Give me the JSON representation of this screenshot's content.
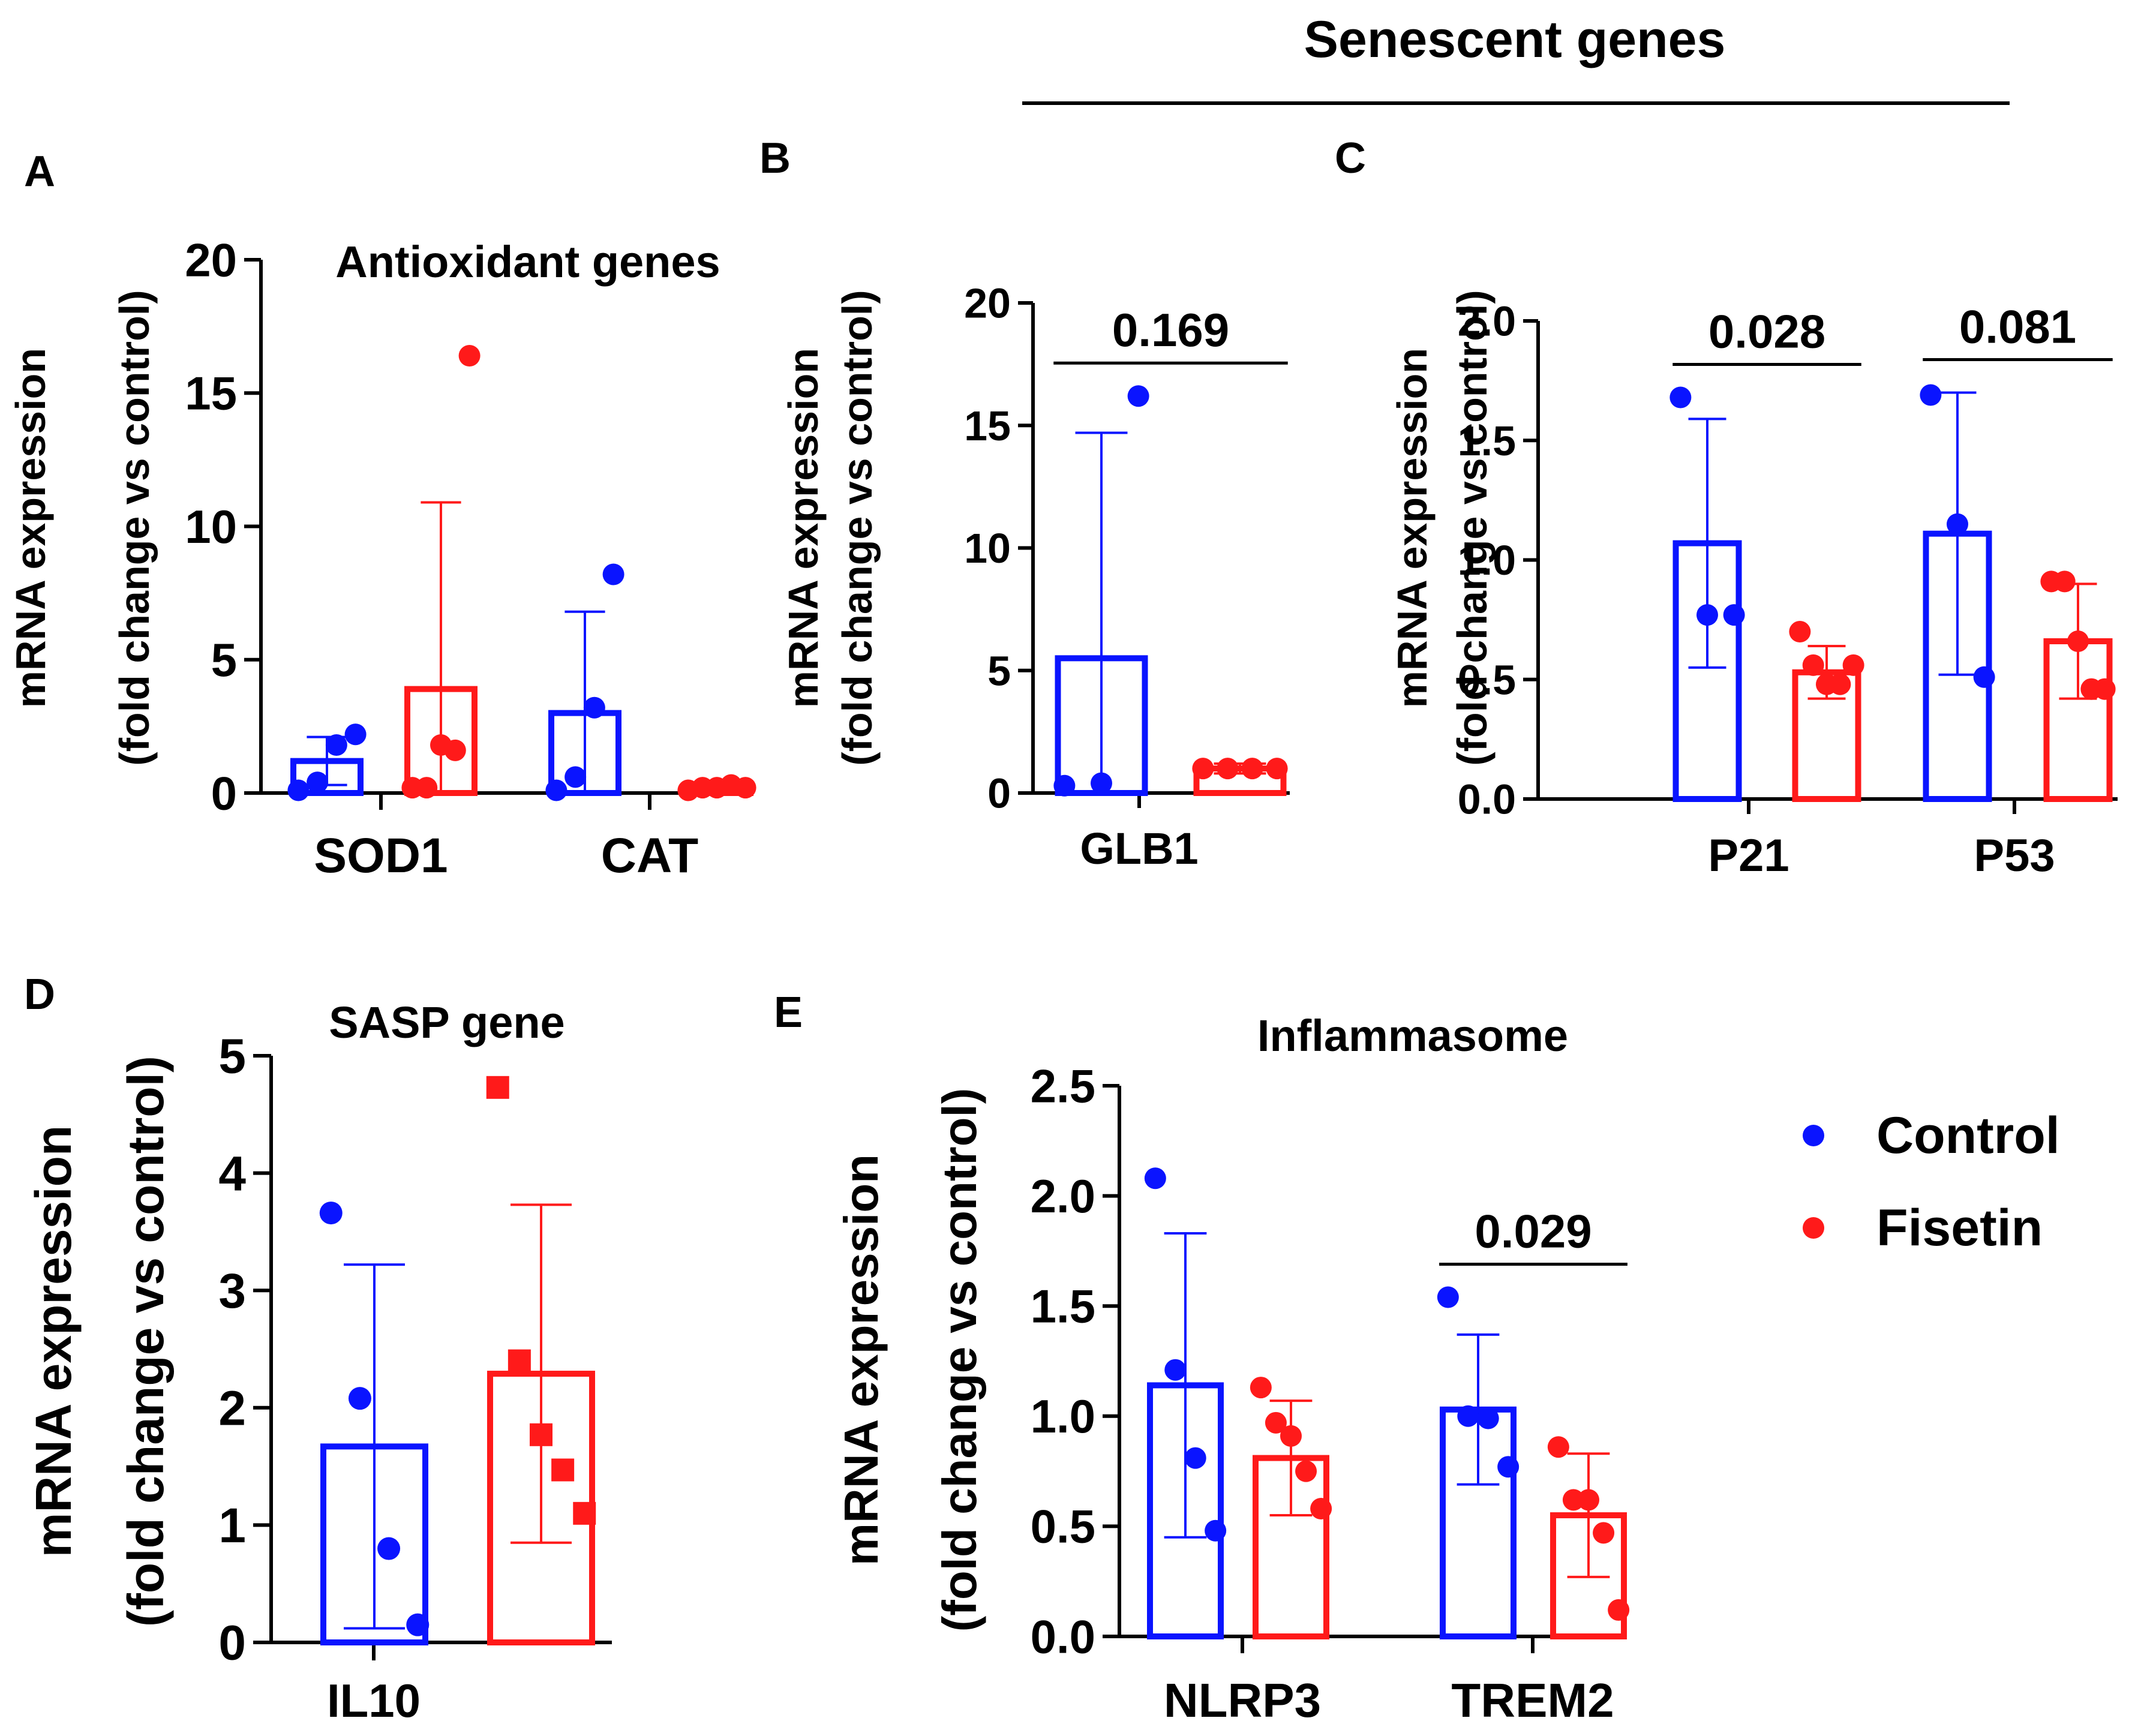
{
  "figure": {
    "group_header": "Senescent genes",
    "legend": [
      {
        "label": "Control",
        "color": "#0a14ff"
      },
      {
        "label": "Fisetin",
        "color": "#ff1a1a"
      }
    ],
    "colors": {
      "control": "#0a14ff",
      "fisetin": "#ff1a1a",
      "axis": "#000000"
    }
  },
  "chart_data": [
    {
      "panel": "A",
      "type": "bar",
      "title": "Antioxidant genes",
      "ylabel_line1": "mRNA expression",
      "ylabel_line2": "(fold change vs control)",
      "categories": [
        "SOD1",
        "CAT"
      ],
      "ylim": [
        0,
        20
      ],
      "yticks": [
        "0",
        "5",
        "10",
        "15",
        "20"
      ],
      "series": [
        {
          "name": "Control",
          "means": [
            1.2,
            3.0
          ],
          "sd": [
            0.9,
            3.8
          ],
          "points": [
            [
              0.1,
              0.4,
              1.8,
              2.2
            ],
            [
              0.1,
              0.6,
              3.2,
              8.2
            ]
          ]
        },
        {
          "name": "Fisetin",
          "means": [
            3.9,
            0.2
          ],
          "sd": [
            7.0,
            0.1
          ],
          "points": [
            [
              0.2,
              0.2,
              1.8,
              1.6,
              16.4
            ],
            [
              0.1,
              0.2,
              0.2,
              0.3,
              0.2
            ]
          ]
        }
      ],
      "pvalues": []
    },
    {
      "panel": "B",
      "type": "bar",
      "title": "",
      "ylabel_line1": "mRNA expression",
      "ylabel_line2": "(fold change vs control)",
      "categories": [
        "GLB1"
      ],
      "ylim": [
        0,
        20
      ],
      "yticks": [
        "0",
        "5",
        "10",
        "15",
        "20"
      ],
      "series": [
        {
          "name": "Control",
          "means": [
            5.5
          ],
          "sd": [
            9.2
          ],
          "points": [
            [
              0.3,
              0.4,
              16.2
            ]
          ]
        },
        {
          "name": "Fisetin",
          "means": [
            1.0
          ],
          "sd": [
            0.2
          ],
          "points": [
            [
              1.0,
              1.0,
              1.0,
              1.0
            ]
          ]
        }
      ],
      "pvalues": [
        {
          "category": "GLB1",
          "label": "0.169"
        }
      ]
    },
    {
      "panel": "C",
      "type": "bar",
      "title": "",
      "ylabel_line1": "mRNA expression",
      "ylabel_line2": "(fold change vs control)",
      "categories": [
        "P21",
        "P53"
      ],
      "ylim": [
        0,
        2
      ],
      "yticks": [
        "0.0",
        "0.5",
        "1.0",
        "1.5",
        "2.0"
      ],
      "series": [
        {
          "name": "Control",
          "means": [
            1.07,
            1.11
          ],
          "sd": [
            0.52,
            0.59
          ],
          "points": [
            [
              1.68,
              0.77,
              0.77
            ],
            [
              1.69,
              1.15,
              0.51
            ]
          ]
        },
        {
          "name": "Fisetin",
          "means": [
            0.53,
            0.66
          ],
          "sd": [
            0.11,
            0.24
          ],
          "points": [
            [
              0.7,
              0.56,
              0.48,
              0.48,
              0.56
            ],
            [
              0.91,
              0.91,
              0.66,
              0.46,
              0.46
            ]
          ]
        }
      ],
      "pvalues": [
        {
          "category": "P21",
          "label": "0.028"
        },
        {
          "category": "P53",
          "label": "0.081"
        }
      ]
    },
    {
      "panel": "D",
      "type": "bar",
      "title": "SASP gene",
      "ylabel_line1": "mRNA expression",
      "ylabel_line2": "(fold change vs control)",
      "categories": [
        "IL10"
      ],
      "ylim": [
        0,
        5
      ],
      "yticks": [
        "0",
        "1",
        "2",
        "3",
        "4",
        "5"
      ],
      "series": [
        {
          "name": "Control",
          "means": [
            1.67
          ],
          "sd": [
            1.55
          ],
          "points": [
            [
              3.66,
              2.08,
              0.8,
              0.15
            ]
          ]
        },
        {
          "name": "Fisetin",
          "means": [
            2.29
          ],
          "sd": [
            1.44
          ],
          "points": [
            [
              4.73,
              2.4,
              1.77,
              1.47,
              1.1
            ]
          ]
        }
      ],
      "pvalues": []
    },
    {
      "panel": "E",
      "type": "bar",
      "title": "Inflammasome",
      "ylabel_line1": "mRNA expression",
      "ylabel_line2": "(fold change vs control)",
      "categories": [
        "NLRP3",
        "TREM2"
      ],
      "ylim": [
        0,
        2.5
      ],
      "yticks": [
        "0.0",
        "0.5",
        "1.0",
        "1.5",
        "2.0",
        "2.5"
      ],
      "series": [
        {
          "name": "Control",
          "means": [
            1.14,
            1.03
          ],
          "sd": [
            0.69,
            0.34
          ],
          "points": [
            [
              2.08,
              1.21,
              0.81,
              0.48
            ],
            [
              1.54,
              1.0,
              0.99,
              0.77
            ]
          ]
        },
        {
          "name": "Fisetin",
          "means": [
            0.81,
            0.55
          ],
          "sd": [
            0.26,
            0.28
          ],
          "points": [
            [
              1.13,
              0.97,
              0.91,
              0.75,
              0.58
            ],
            [
              0.86,
              0.62,
              0.62,
              0.47,
              0.12
            ]
          ]
        }
      ],
      "pvalues": [
        {
          "category": "TREM2",
          "label": "0.029"
        }
      ]
    }
  ]
}
